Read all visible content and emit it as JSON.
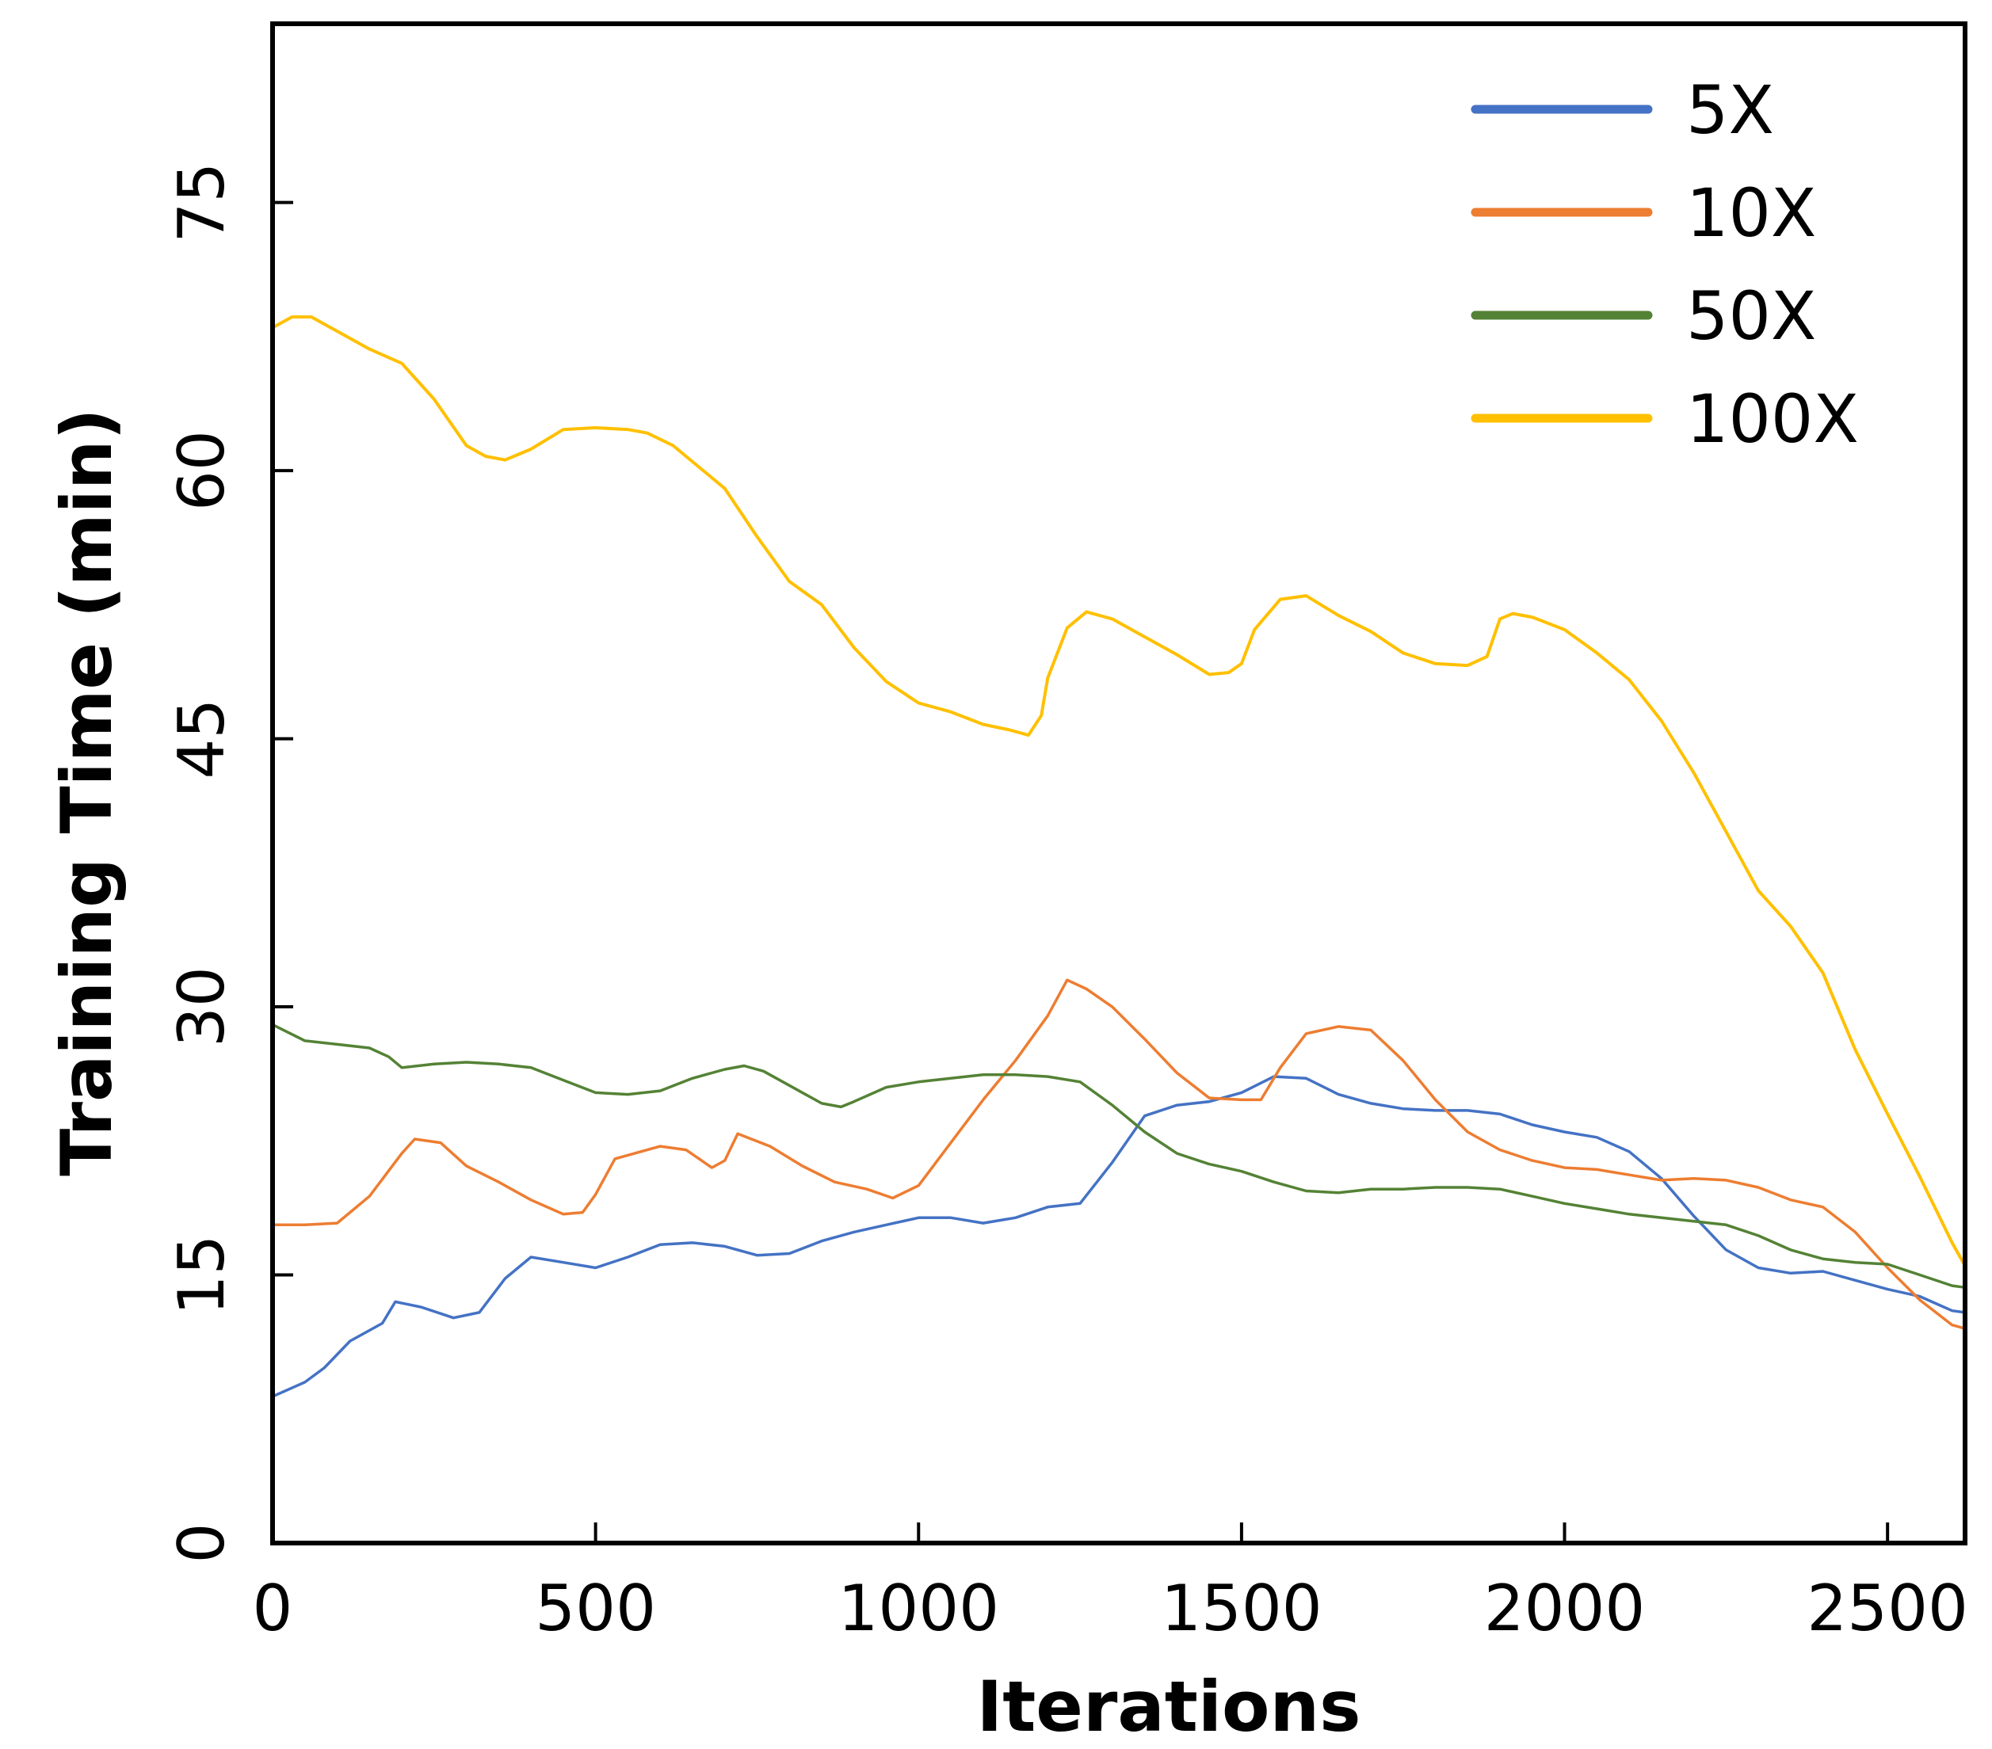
{
  "chart_data": {
    "type": "line",
    "title": "",
    "xlabel": "Iterations",
    "ylabel": "Training Time (min)",
    "xlim": [
      0,
      2620
    ],
    "ylim": [
      0,
      85
    ],
    "xticks": [
      0,
      500,
      1000,
      1500,
      2000,
      2500
    ],
    "yticks": [
      0,
      15,
      30,
      45,
      60,
      75
    ],
    "grid": false,
    "legend_position": "top-right",
    "series": [
      {
        "name": "5X",
        "color": "#4472C4",
        "x": [
          0,
          50,
          80,
          120,
          170,
          190,
          230,
          280,
          320,
          360,
          400,
          450,
          500,
          550,
          600,
          650,
          700,
          750,
          800,
          850,
          900,
          950,
          1000,
          1050,
          1100,
          1150,
          1200,
          1250,
          1300,
          1350,
          1400,
          1450,
          1500,
          1550,
          1600,
          1650,
          1700,
          1750,
          1800,
          1850,
          1900,
          1950,
          2000,
          2050,
          2100,
          2150,
          2200,
          2250,
          2300,
          2350,
          2400,
          2450,
          2500,
          2550,
          2600,
          2620
        ],
        "y": [
          8.2,
          9.0,
          9.8,
          11.3,
          12.3,
          13.5,
          13.2,
          12.6,
          12.9,
          14.8,
          16.0,
          15.7,
          15.4,
          16.0,
          16.7,
          16.8,
          16.6,
          16.1,
          16.2,
          16.9,
          17.4,
          17.8,
          18.2,
          18.2,
          17.9,
          18.2,
          18.8,
          19.0,
          21.3,
          23.9,
          24.5,
          24.7,
          25.2,
          26.1,
          26.0,
          25.1,
          24.6,
          24.3,
          24.2,
          24.2,
          24.0,
          23.4,
          23.0,
          22.7,
          21.9,
          20.4,
          18.3,
          16.4,
          15.4,
          15.1,
          15.2,
          14.7,
          14.2,
          13.8,
          13.0,
          12.9
        ]
      },
      {
        "name": "10X",
        "color": "#ED7D31",
        "x": [
          0,
          50,
          100,
          150,
          200,
          220,
          260,
          300,
          350,
          400,
          450,
          480,
          500,
          530,
          600,
          640,
          680,
          700,
          720,
          770,
          820,
          870,
          920,
          960,
          1000,
          1050,
          1100,
          1150,
          1200,
          1230,
          1260,
          1300,
          1350,
          1400,
          1450,
          1500,
          1530,
          1560,
          1600,
          1650,
          1700,
          1750,
          1800,
          1850,
          1900,
          1950,
          2000,
          2050,
          2100,
          2150,
          2200,
          2250,
          2300,
          2350,
          2400,
          2450,
          2500,
          2550,
          2600,
          2620
        ],
        "y": [
          17.8,
          17.8,
          17.9,
          19.4,
          21.8,
          22.6,
          22.4,
          21.1,
          20.2,
          19.2,
          18.4,
          18.5,
          19.5,
          21.5,
          22.2,
          22.0,
          21.0,
          21.4,
          22.9,
          22.2,
          21.1,
          20.2,
          19.8,
          19.3,
          20.0,
          22.4,
          24.8,
          27.0,
          29.5,
          31.5,
          31.0,
          30.0,
          28.2,
          26.3,
          24.9,
          24.8,
          24.8,
          26.6,
          28.5,
          28.9,
          28.7,
          27.0,
          24.8,
          23.0,
          22.0,
          21.4,
          21.0,
          20.9,
          20.6,
          20.3,
          20.4,
          20.3,
          19.9,
          19.2,
          18.8,
          17.4,
          15.4,
          13.6,
          12.2,
          12.0
        ]
      },
      {
        "name": "50X",
        "color": "#548235",
        "x": [
          0,
          50,
          100,
          150,
          180,
          200,
          250,
          300,
          350,
          400,
          450,
          500,
          550,
          600,
          650,
          700,
          730,
          760,
          800,
          850,
          880,
          900,
          950,
          1000,
          1050,
          1100,
          1150,
          1200,
          1250,
          1300,
          1350,
          1400,
          1450,
          1500,
          1550,
          1600,
          1650,
          1700,
          1750,
          1800,
          1850,
          1900,
          1950,
          2000,
          2050,
          2100,
          2150,
          2200,
          2250,
          2300,
          2350,
          2400,
          2450,
          2500,
          2550,
          2600,
          2620
        ],
        "y": [
          29.0,
          28.1,
          27.9,
          27.7,
          27.2,
          26.6,
          26.8,
          26.9,
          26.8,
          26.6,
          25.9,
          25.2,
          25.1,
          25.3,
          26.0,
          26.5,
          26.7,
          26.4,
          25.6,
          24.6,
          24.4,
          24.7,
          25.5,
          25.8,
          26.0,
          26.2,
          26.2,
          26.1,
          25.8,
          24.5,
          23.0,
          21.8,
          21.2,
          20.8,
          20.2,
          19.7,
          19.6,
          19.8,
          19.8,
          19.9,
          19.9,
          19.8,
          19.4,
          19.0,
          18.7,
          18.4,
          18.2,
          18.0,
          17.8,
          17.2,
          16.4,
          15.9,
          15.7,
          15.6,
          15.0,
          14.4,
          14.3
        ]
      },
      {
        "name": "100X",
        "color": "#FFC000",
        "x": [
          0,
          30,
          60,
          100,
          150,
          200,
          250,
          300,
          330,
          360,
          400,
          450,
          500,
          550,
          580,
          620,
          700,
          750,
          800,
          850,
          900,
          950,
          1000,
          1050,
          1100,
          1140,
          1170,
          1190,
          1200,
          1230,
          1260,
          1300,
          1350,
          1400,
          1450,
          1480,
          1500,
          1520,
          1560,
          1600,
          1650,
          1700,
          1750,
          1800,
          1850,
          1880,
          1900,
          1920,
          1950,
          2000,
          2050,
          2100,
          2150,
          2200,
          2250,
          2300,
          2350,
          2400,
          2450,
          2500,
          2550,
          2600,
          2620
        ],
        "y": [
          68.0,
          68.6,
          68.6,
          67.8,
          66.8,
          66.0,
          64.0,
          61.4,
          60.8,
          60.6,
          61.2,
          62.3,
          62.4,
          62.3,
          62.1,
          61.4,
          59.0,
          56.3,
          53.8,
          52.5,
          50.1,
          48.2,
          47.0,
          46.5,
          45.8,
          45.5,
          45.2,
          46.3,
          48.4,
          51.2,
          52.1,
          51.7,
          50.7,
          49.7,
          48.6,
          48.7,
          49.2,
          51.1,
          52.8,
          53.0,
          51.9,
          51.0,
          49.8,
          49.2,
          49.1,
          49.6,
          51.7,
          52.0,
          51.8,
          51.1,
          49.8,
          48.3,
          46.0,
          43.1,
          39.8,
          36.5,
          34.5,
          31.9,
          27.6,
          24.0,
          20.5,
          16.8,
          15.5
        ]
      }
    ]
  }
}
